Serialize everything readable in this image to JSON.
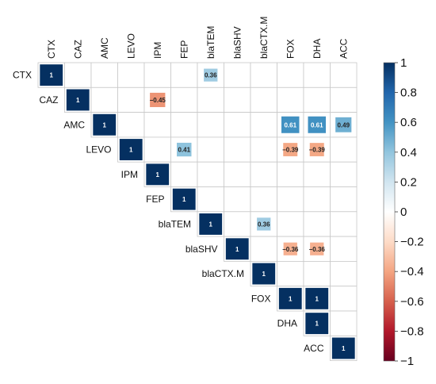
{
  "chart_data": {
    "type": "heatmap",
    "variables": [
      "CTX",
      "CAZ",
      "AMC",
      "LEVO",
      "IPM",
      "FEP",
      "blaTEM",
      "blaSHV",
      "blaCTX.M",
      "FOX",
      "DHA",
      "ACC"
    ],
    "layout": "upper-triangle",
    "cells": [
      {
        "row": "CTX",
        "col": "CTX",
        "value": 1,
        "label": "1"
      },
      {
        "row": "CTX",
        "col": "blaTEM",
        "value": 0.36,
        "label": "0.36"
      },
      {
        "row": "CAZ",
        "col": "CAZ",
        "value": 1,
        "label": "1"
      },
      {
        "row": "CAZ",
        "col": "IPM",
        "value": -0.45,
        "label": "−0.45"
      },
      {
        "row": "AMC",
        "col": "AMC",
        "value": 1,
        "label": "1"
      },
      {
        "row": "AMC",
        "col": "FOX",
        "value": 0.61,
        "label": "0.61"
      },
      {
        "row": "AMC",
        "col": "DHA",
        "value": 0.61,
        "label": "0.61"
      },
      {
        "row": "AMC",
        "col": "ACC",
        "value": 0.49,
        "label": "0.49"
      },
      {
        "row": "LEVO",
        "col": "LEVO",
        "value": 1,
        "label": "1"
      },
      {
        "row": "LEVO",
        "col": "FEP",
        "value": 0.41,
        "label": "0.41"
      },
      {
        "row": "LEVO",
        "col": "FOX",
        "value": -0.39,
        "label": "−0.39"
      },
      {
        "row": "LEVO",
        "col": "DHA",
        "value": -0.39,
        "label": "−0.39"
      },
      {
        "row": "IPM",
        "col": "IPM",
        "value": 1,
        "label": "1"
      },
      {
        "row": "FEP",
        "col": "FEP",
        "value": 1,
        "label": "1"
      },
      {
        "row": "blaTEM",
        "col": "blaTEM",
        "value": 1,
        "label": "1"
      },
      {
        "row": "blaTEM",
        "col": "blaCTX.M",
        "value": 0.36,
        "label": "0.36"
      },
      {
        "row": "blaSHV",
        "col": "blaSHV",
        "value": 1,
        "label": "1"
      },
      {
        "row": "blaSHV",
        "col": "FOX",
        "value": -0.36,
        "label": "−0.36"
      },
      {
        "row": "blaSHV",
        "col": "DHA",
        "value": -0.36,
        "label": "−0.36"
      },
      {
        "row": "blaCTX.M",
        "col": "blaCTX.M",
        "value": 1,
        "label": "1"
      },
      {
        "row": "FOX",
        "col": "FOX",
        "value": 1,
        "label": "1"
      },
      {
        "row": "FOX",
        "col": "DHA",
        "value": 1,
        "label": "1"
      },
      {
        "row": "DHA",
        "col": "DHA",
        "value": 1,
        "label": "1"
      },
      {
        "row": "ACC",
        "col": "ACC",
        "value": 1,
        "label": "1"
      }
    ],
    "colorbar": {
      "range": [
        -1,
        1
      ],
      "ticks": [
        1,
        0.8,
        0.6,
        0.4,
        0.2,
        0,
        -0.2,
        -0.4,
        -0.6,
        -0.8,
        -1
      ],
      "tick_labels": [
        "1",
        "0.8",
        "0.6",
        "0.4",
        "0.2",
        "0",
        "−0.2",
        "−0.4",
        "−0.6",
        "−0.8",
        "−1"
      ],
      "colors": {
        "negative": "#67001f",
        "neutral": "#ffffff",
        "positive": "#053061"
      }
    },
    "legend": "right"
  }
}
